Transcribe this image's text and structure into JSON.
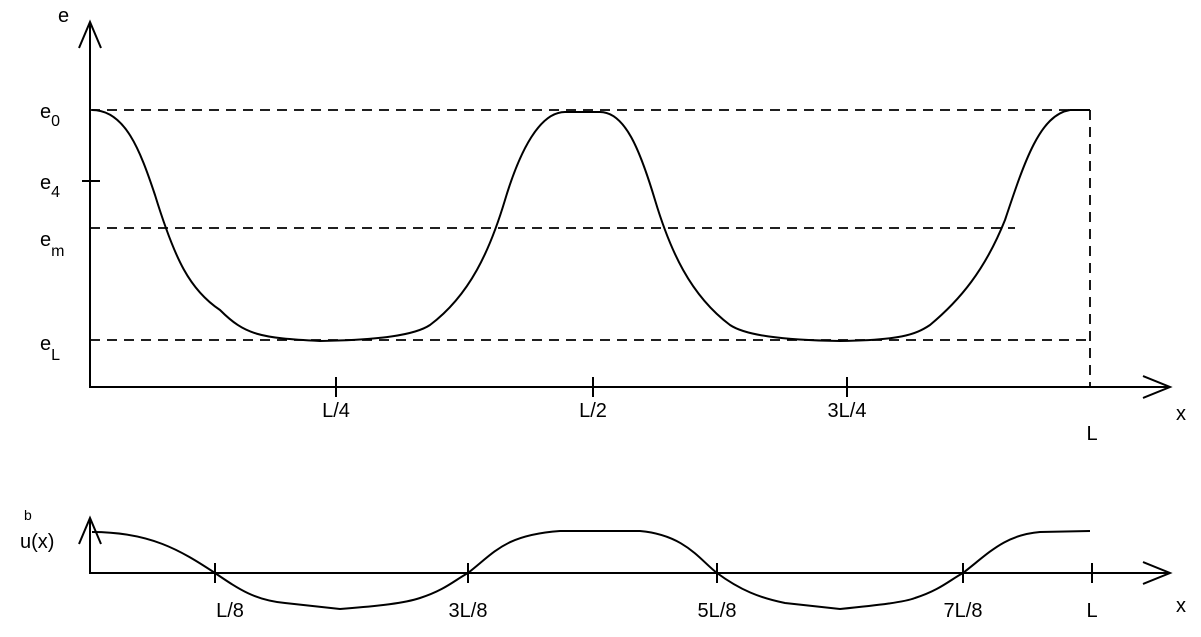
{
  "top_plot": {
    "y_axis_label": "e",
    "x_axis_label": "x",
    "levels": [
      {
        "base": "e",
        "sub": "0"
      },
      {
        "base": "e",
        "sub": "4"
      },
      {
        "base": "e",
        "sub": "m"
      },
      {
        "base": "e",
        "sub": "L"
      }
    ],
    "x_ticks": [
      "L/4",
      "L/2",
      "3L/4",
      "L"
    ]
  },
  "bottom_plot": {
    "y_axis_label": {
      "base": "u(x)",
      "sup": "b"
    },
    "x_axis_label": "x",
    "x_ticks": [
      "L/8",
      "3L/8",
      "5L/8",
      "7L/8",
      "L"
    ]
  }
}
